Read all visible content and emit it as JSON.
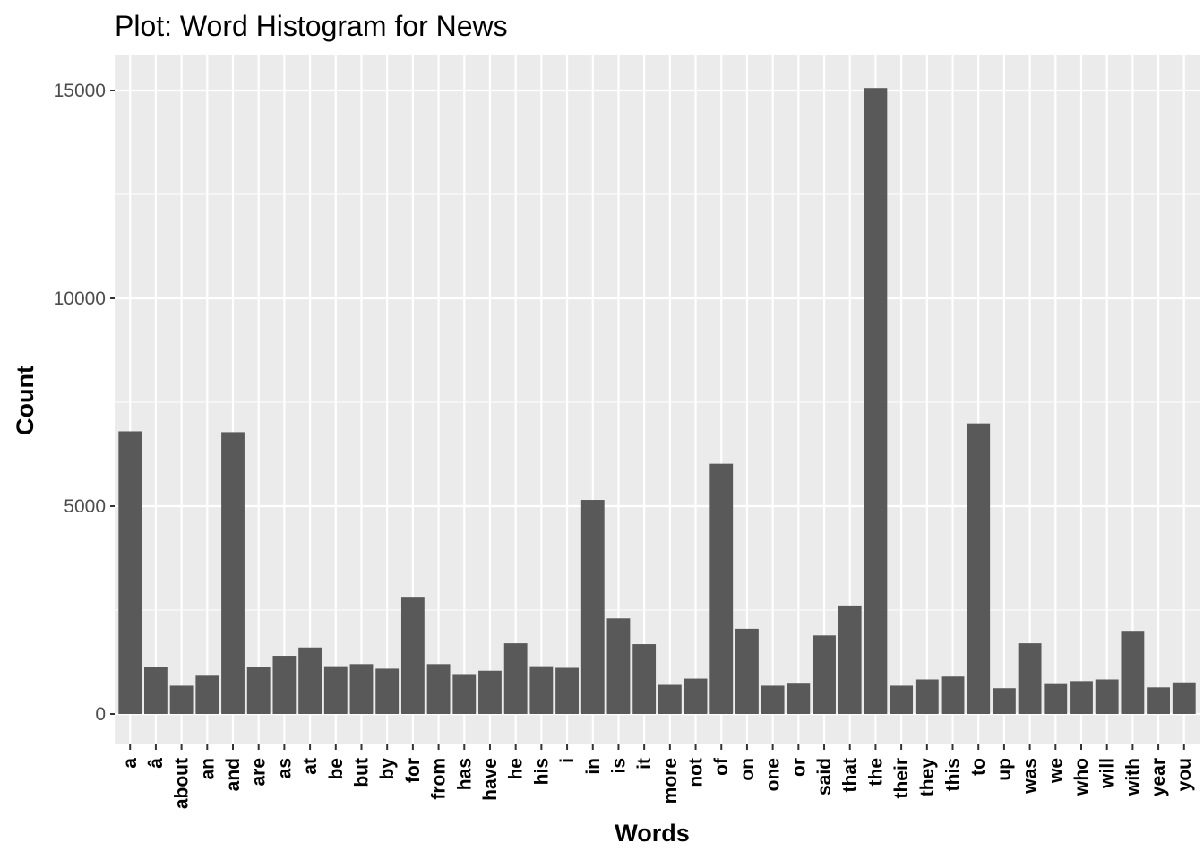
{
  "chart_data": {
    "type": "bar",
    "title": "Plot: Word Histogram for News",
    "xlabel": "Words",
    "ylabel": "Count",
    "ylim": [
      -1000,
      15800
    ],
    "yticks": [
      0,
      5000,
      10000,
      15000
    ],
    "ytick_labels": [
      "0",
      "5000",
      "10000",
      "15000"
    ],
    "grid": true,
    "colors": {
      "bar": "#595959",
      "panel": "#ebebeb",
      "grid": "#ffffff",
      "tick": "#333333"
    },
    "categories": [
      "a",
      "â",
      "about",
      "an",
      "and",
      "are",
      "as",
      "at",
      "be",
      "but",
      "by",
      "for",
      "from",
      "has",
      "have",
      "he",
      "his",
      "i",
      "in",
      "is",
      "it",
      "more",
      "not",
      "of",
      "on",
      "one",
      "or",
      "said",
      "that",
      "the",
      "their",
      "they",
      "this",
      "to",
      "up",
      "was",
      "we",
      "who",
      "will",
      "with",
      "year",
      "you"
    ],
    "values": [
      6800,
      1130,
      680,
      920,
      6780,
      1130,
      1400,
      1600,
      1150,
      1200,
      1090,
      2820,
      1200,
      960,
      1040,
      1700,
      1150,
      1110,
      5150,
      2300,
      1680,
      700,
      850,
      6020,
      2050,
      680,
      750,
      1890,
      2610,
      15060,
      680,
      830,
      900,
      6990,
      620,
      1700,
      740,
      790,
      830,
      2000,
      640,
      760
    ]
  }
}
